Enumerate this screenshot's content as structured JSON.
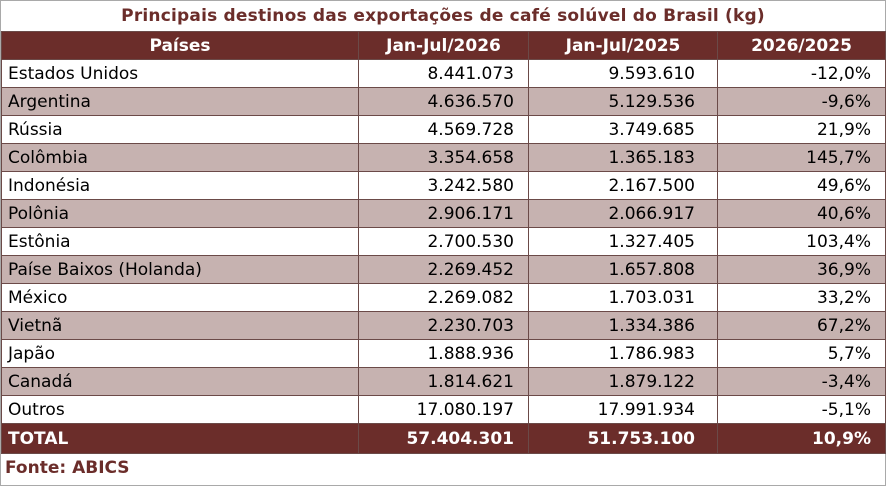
{
  "title": "Principais destinos das exportações de café solúvel do Brasil (kg)",
  "headers": [
    "Países",
    "Jan-Jul/2026",
    "Jan-Jul/2025",
    "2026/2025"
  ],
  "rows": [
    {
      "country": "Estados Unidos",
      "y2026": "8.441.073",
      "y2025": "9.593.610",
      "change": "-12,0%"
    },
    {
      "country": "Argentina",
      "y2026": "4.636.570",
      "y2025": "5.129.536",
      "change": "-9,6%"
    },
    {
      "country": "Rússia",
      "y2026": "4.569.728",
      "y2025": "3.749.685",
      "change": "21,9%"
    },
    {
      "country": "Colômbia",
      "y2026": "3.354.658",
      "y2025": "1.365.183",
      "change": "145,7%"
    },
    {
      "country": "Indonésia",
      "y2026": "3.242.580",
      "y2025": "2.167.500",
      "change": "49,6%"
    },
    {
      "country": "Polônia",
      "y2026": "2.906.171",
      "y2025": "2.066.917",
      "change": "40,6%"
    },
    {
      "country": "Estônia",
      "y2026": "2.700.530",
      "y2025": "1.327.405",
      "change": "103,4%"
    },
    {
      "country": "Paíse Baixos (Holanda)",
      "y2026": "2.269.452",
      "y2025": "1.657.808",
      "change": "36,9%"
    },
    {
      "country": "México",
      "y2026": "2.269.082",
      "y2025": "1.703.031",
      "change": "33,2%"
    },
    {
      "country": "Vietnã",
      "y2026": "2.230.703",
      "y2025": "1.334.386",
      "change": "67,2%"
    },
    {
      "country": "Japão",
      "y2026": "1.888.936",
      "y2025": "1.786.983",
      "change": "5,7%"
    },
    {
      "country": "Canadá",
      "y2026": "1.814.621",
      "y2025": "1.879.122",
      "change": "-3,4%"
    },
    {
      "country": "Outros",
      "y2026": "17.080.197",
      "y2025": "17.991.934",
      "change": "-5,1%"
    }
  ],
  "total": {
    "label": "TOTAL",
    "y2026": "57.404.301",
    "y2025": "51.753.100",
    "change": "10,9%"
  },
  "source": "Fonte: ABICS",
  "colors": {
    "header_bg": "#6b2d2a",
    "alt_row_bg": "#c6b2b0",
    "title_color": "#6b2d2a"
  }
}
